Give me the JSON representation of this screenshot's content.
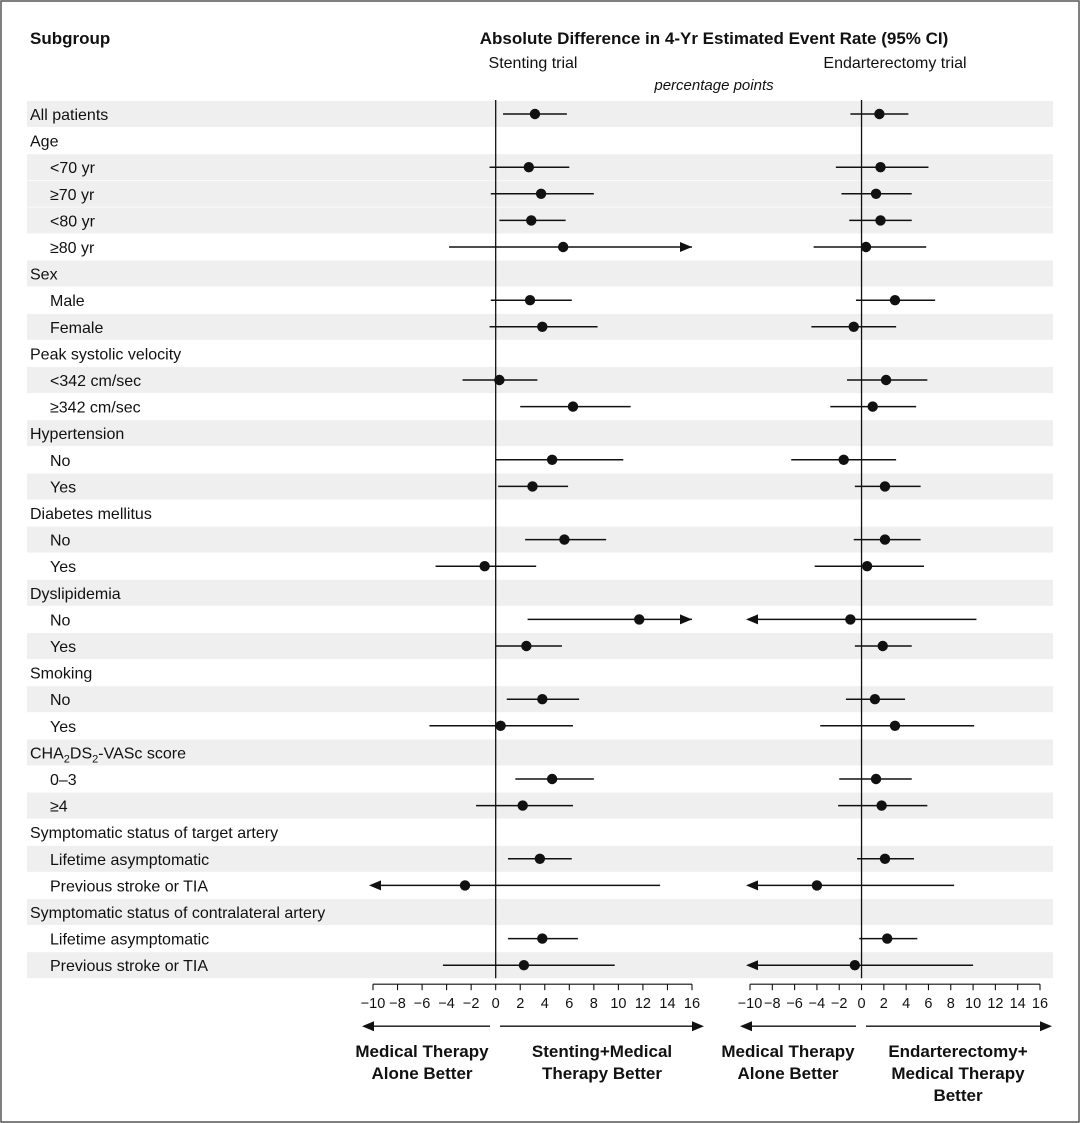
{
  "chart_data": {
    "type": "forest",
    "title": "Absolute Difference in 4-Yr Estimated Event Rate (95% CI)",
    "subgroup_header": "Subgroup",
    "units": "percentage points",
    "panels": [
      {
        "name": "Stenting trial",
        "left_label": "Medical Therapy Alone Better",
        "right_label": "Stenting+Medical Therapy Better"
      },
      {
        "name": "Endarterectomy trial",
        "left_label": "Medical Therapy Alone Better",
        "right_label": "Endarterectomy+ Medical Therapy Better"
      }
    ],
    "xlim": [
      -10,
      16
    ],
    "ticks": [
      -10,
      -8,
      -6,
      -4,
      -2,
      0,
      2,
      4,
      6,
      8,
      10,
      12,
      14,
      16
    ],
    "tick_labels": [
      "−10",
      "−8",
      "−6",
      "−4",
      "−2",
      "0",
      "2",
      "4",
      "6",
      "8",
      "10",
      "12",
      "14",
      "16"
    ],
    "rows": [
      {
        "label": "All patients",
        "indent": false,
        "shade": true,
        "stent": {
          "est": 3.2,
          "lo": 0.6,
          "hi": 5.8
        },
        "endart": {
          "est": 1.6,
          "lo": -1.0,
          "hi": 4.2
        }
      },
      {
        "label": "Age",
        "indent": false,
        "shade": false,
        "stent": null,
        "endart": null
      },
      {
        "label": "<70 yr",
        "indent": true,
        "shade": true,
        "stent": {
          "est": 2.7,
          "lo": -0.5,
          "hi": 6.0
        },
        "endart": {
          "est": 1.7,
          "lo": -2.3,
          "hi": 6.0
        }
      },
      {
        "label": "≥70 yr",
        "indent": true,
        "shade": true,
        "stent": {
          "est": 3.7,
          "lo": -0.4,
          "hi": 8.0
        },
        "endart": {
          "est": 1.3,
          "lo": -1.8,
          "hi": 4.5
        }
      },
      {
        "label": "<80 yr",
        "indent": true,
        "shade": true,
        "stent": {
          "est": 2.9,
          "lo": 0.3,
          "hi": 5.7
        },
        "endart": {
          "est": 1.7,
          "lo": -1.1,
          "hi": 4.5
        }
      },
      {
        "label": "≥80 yr",
        "indent": true,
        "shade": false,
        "stent": {
          "est": 5.5,
          "lo": -3.8,
          "hi": 16,
          "hi_arrow": true
        },
        "endart": {
          "est": 0.4,
          "lo": -4.3,
          "hi": 5.8
        }
      },
      {
        "label": "Sex",
        "indent": false,
        "shade": true,
        "stent": null,
        "endart": null
      },
      {
        "label": "Male",
        "indent": true,
        "shade": false,
        "stent": {
          "est": 2.8,
          "lo": -0.4,
          "hi": 6.2
        },
        "endart": {
          "est": 3.0,
          "lo": -0.5,
          "hi": 6.6
        }
      },
      {
        "label": "Female",
        "indent": true,
        "shade": true,
        "stent": {
          "est": 3.8,
          "lo": -0.5,
          "hi": 8.3
        },
        "endart": {
          "est": -0.7,
          "lo": -4.5,
          "hi": 3.1
        }
      },
      {
        "label": "Peak systolic velocity",
        "indent": false,
        "shade": false,
        "stent": null,
        "endart": null
      },
      {
        "label": "<342 cm/sec",
        "indent": true,
        "shade": true,
        "stent": {
          "est": 0.3,
          "lo": -2.7,
          "hi": 3.4
        },
        "endart": {
          "est": 2.2,
          "lo": -1.3,
          "hi": 5.9
        }
      },
      {
        "label": "≥342 cm/sec",
        "indent": true,
        "shade": false,
        "stent": {
          "est": 6.3,
          "lo": 2.0,
          "hi": 11.0
        },
        "endart": {
          "est": 1.0,
          "lo": -2.8,
          "hi": 4.9
        }
      },
      {
        "label": "Hypertension",
        "indent": false,
        "shade": true,
        "stent": null,
        "endart": null
      },
      {
        "label": "No",
        "indent": true,
        "shade": false,
        "stent": {
          "est": 4.6,
          "lo": 0.0,
          "hi": 10.4
        },
        "endart": {
          "est": -1.6,
          "lo": -6.3,
          "hi": 3.1
        }
      },
      {
        "label": "Yes",
        "indent": true,
        "shade": true,
        "stent": {
          "est": 3.0,
          "lo": 0.2,
          "hi": 5.9
        },
        "endart": {
          "est": 2.1,
          "lo": -0.6,
          "hi": 5.3
        }
      },
      {
        "label": "Diabetes mellitus",
        "indent": false,
        "shade": false,
        "stent": null,
        "endart": null
      },
      {
        "label": "No",
        "indent": true,
        "shade": true,
        "stent": {
          "est": 5.6,
          "lo": 2.4,
          "hi": 9.0
        },
        "endart": {
          "est": 2.1,
          "lo": -0.7,
          "hi": 5.3
        }
      },
      {
        "label": "Yes",
        "indent": true,
        "shade": false,
        "stent": {
          "est": -0.9,
          "lo": -4.9,
          "hi": 3.3
        },
        "endart": {
          "est": 0.5,
          "lo": -4.2,
          "hi": 5.6
        }
      },
      {
        "label": "Dyslipidemia",
        "indent": false,
        "shade": true,
        "stent": null,
        "endart": null
      },
      {
        "label": "No",
        "indent": true,
        "shade": false,
        "stent": {
          "est": 11.7,
          "lo": 2.6,
          "hi": 16,
          "hi_arrow": true
        },
        "endart": {
          "est": -1.0,
          "lo": -10,
          "hi": 10.3,
          "lo_arrow": true
        }
      },
      {
        "label": "Yes",
        "indent": true,
        "shade": true,
        "stent": {
          "est": 2.5,
          "lo": 0.0,
          "hi": 5.4
        },
        "endart": {
          "est": 1.9,
          "lo": -0.6,
          "hi": 4.5
        }
      },
      {
        "label": "Smoking",
        "indent": false,
        "shade": false,
        "stent": null,
        "endart": null
      },
      {
        "label": "No",
        "indent": true,
        "shade": true,
        "stent": {
          "est": 3.8,
          "lo": 0.9,
          "hi": 6.8
        },
        "endart": {
          "est": 1.2,
          "lo": -1.4,
          "hi": 3.9
        }
      },
      {
        "label": "Yes",
        "indent": true,
        "shade": false,
        "stent": {
          "est": 0.4,
          "lo": -5.4,
          "hi": 6.3
        },
        "endart": {
          "est": 3.0,
          "lo": -3.7,
          "hi": 10.1
        }
      },
      {
        "label": "CHA2DS2-VASc score",
        "indent": false,
        "shade": true,
        "stent": null,
        "endart": null
      },
      {
        "label": "0–3",
        "indent": true,
        "shade": false,
        "stent": {
          "est": 4.6,
          "lo": 1.6,
          "hi": 8.0
        },
        "endart": {
          "est": 1.3,
          "lo": -2.0,
          "hi": 4.5
        }
      },
      {
        "label": "≥4",
        "indent": true,
        "shade": true,
        "stent": {
          "est": 2.2,
          "lo": -1.6,
          "hi": 6.3
        },
        "endart": {
          "est": 1.8,
          "lo": -2.1,
          "hi": 5.9
        }
      },
      {
        "label": "Symptomatic status of target artery",
        "indent": false,
        "shade": false,
        "stent": null,
        "endart": null
      },
      {
        "label": "Lifetime asymptomatic",
        "indent": true,
        "shade": true,
        "stent": {
          "est": 3.6,
          "lo": 1.0,
          "hi": 6.2
        },
        "endart": {
          "est": 2.1,
          "lo": -0.4,
          "hi": 4.7
        }
      },
      {
        "label": "Previous stroke or TIA",
        "indent": true,
        "shade": false,
        "stent": {
          "est": -2.5,
          "lo": -10,
          "hi": 13.4,
          "lo_arrow": true
        },
        "endart": {
          "est": -4.0,
          "lo": -10,
          "hi": 8.3,
          "lo_arrow": true
        }
      },
      {
        "label": "Symptomatic status of contralateral artery",
        "indent": false,
        "shade": true,
        "stent": null,
        "endart": null
      },
      {
        "label": "Lifetime asymptomatic",
        "indent": true,
        "shade": false,
        "stent": {
          "est": 3.8,
          "lo": 1.0,
          "hi": 6.7
        },
        "endart": {
          "est": 2.3,
          "lo": -0.2,
          "hi": 5.0
        }
      },
      {
        "label": "Previous stroke or TIA",
        "indent": true,
        "shade": true,
        "stent": {
          "est": 2.3,
          "lo": -4.3,
          "hi": 9.7
        },
        "endart": {
          "est": -0.6,
          "lo": -10,
          "hi": 10.0,
          "lo_arrow": true
        }
      }
    ]
  }
}
